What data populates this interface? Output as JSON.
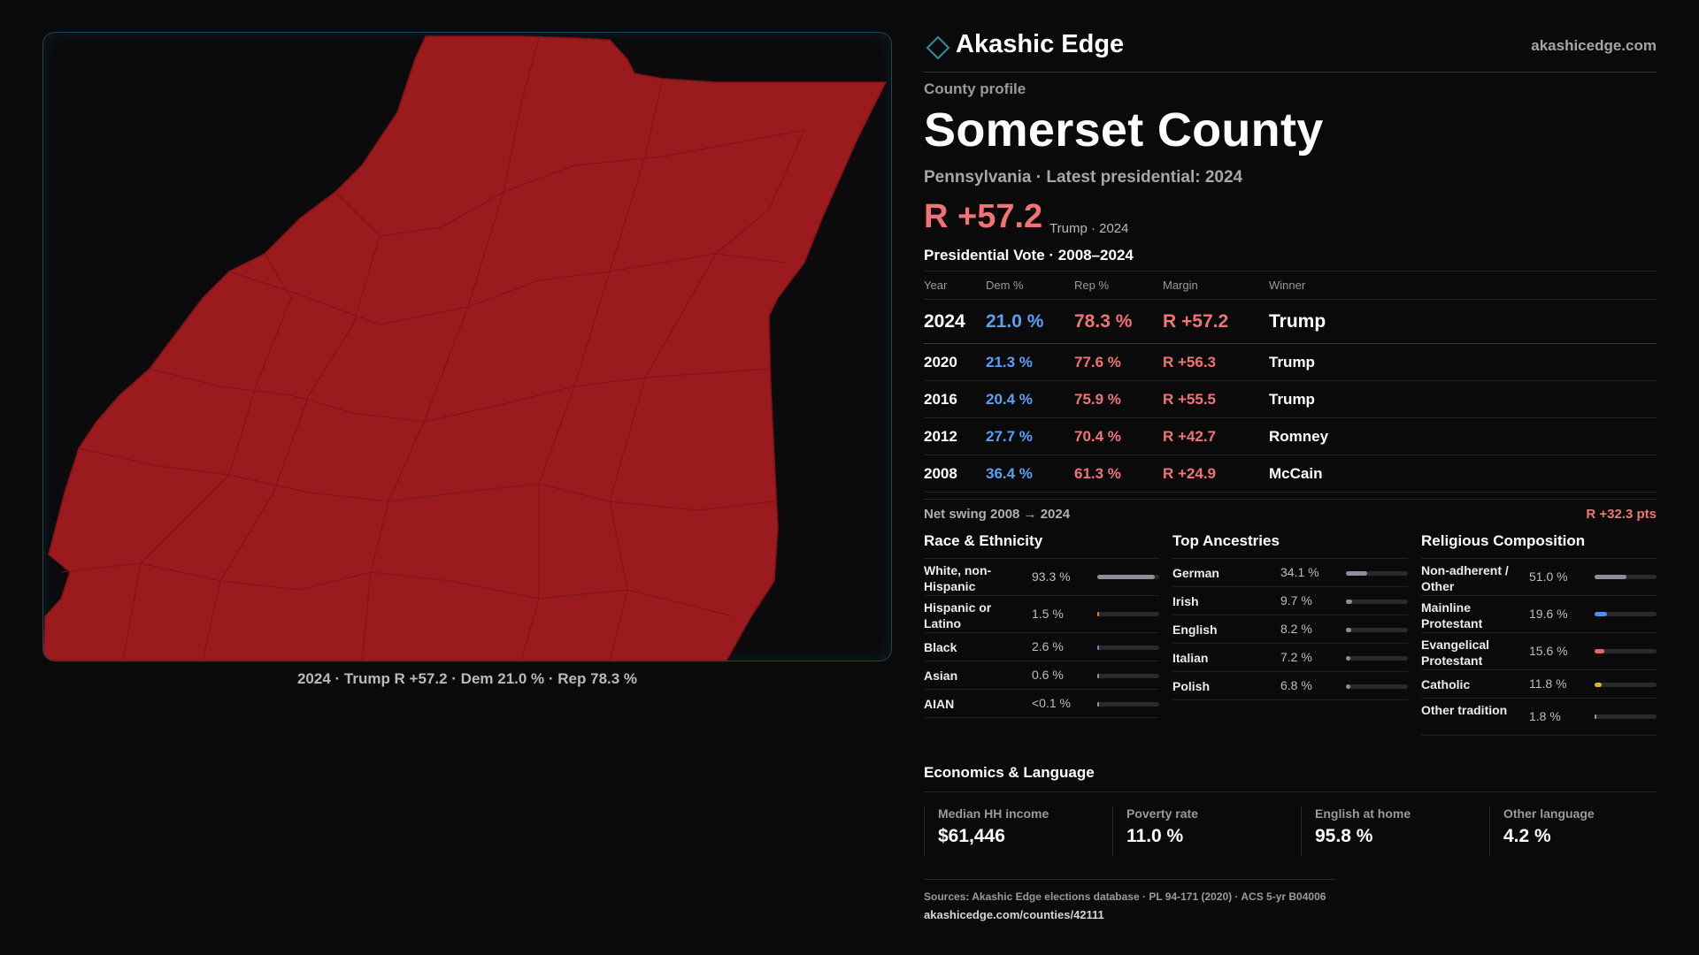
{
  "brand": {
    "name": "Akashic Edge",
    "url": "akashicedge.com"
  },
  "profile": {
    "kicker": "County profile",
    "title": "Somerset County",
    "subtitle": "Pennsylvania · Latest presidential: 2024",
    "margin": "R +57.2",
    "margin_note": "Trump · 2024"
  },
  "map": {
    "caption": "2024 · Trump R +57.2 · Dem 21.0 % · Rep 78.3 %",
    "fill_color": "#9b1a1e",
    "border_color": "#7a1316"
  },
  "votes": {
    "heading": "Presidential Vote · 2008–2024",
    "columns": [
      "Year",
      "Dem %",
      "Rep %",
      "Margin",
      "Winner"
    ],
    "rows": [
      {
        "year": "2024",
        "dem": "21.0 %",
        "rep": "78.3 %",
        "margin": "R +57.2",
        "winner": "Trump"
      },
      {
        "year": "2020",
        "dem": "21.3 %",
        "rep": "77.6 %",
        "margin": "R +56.3",
        "winner": "Trump"
      },
      {
        "year": "2016",
        "dem": "20.4 %",
        "rep": "75.9 %",
        "margin": "R +55.5",
        "winner": "Trump"
      },
      {
        "year": "2012",
        "dem": "27.7 %",
        "rep": "70.4 %",
        "margin": "R +42.7",
        "winner": "Romney"
      },
      {
        "year": "2008",
        "dem": "36.4 %",
        "rep": "61.3 %",
        "margin": "R +24.9",
        "winner": "McCain"
      }
    ],
    "swing_label": "Net swing 2008 → 2024",
    "swing_value": "R +32.3 pts"
  },
  "race": {
    "heading": "Race & Ethnicity",
    "items": [
      {
        "label": "White, non-Hispanic",
        "value": "93.3 %",
        "share": 93.3,
        "color": "#8a8f9a"
      },
      {
        "label": "Hispanic or Latino",
        "value": "1.5 %",
        "share": 1.5,
        "color": "#d9863a"
      },
      {
        "label": "Black",
        "value": "2.6 %",
        "share": 2.6,
        "color": "#7f7fd8"
      },
      {
        "label": "Asian",
        "value": "0.6 %",
        "share": 0.6,
        "color": "#9a9a9a"
      },
      {
        "label": "AIAN",
        "value": "<0.1 %",
        "share": 0.1,
        "color": "#9a9a9a"
      }
    ]
  },
  "ancestry": {
    "heading": "Top Ancestries",
    "items": [
      {
        "label": "German",
        "value": "34.1 %",
        "share": 34.1,
        "color": "#8a8f9a"
      },
      {
        "label": "Irish",
        "value": "9.7 %",
        "share": 9.7,
        "color": "#8a8f9a"
      },
      {
        "label": "English",
        "value": "8.2 %",
        "share": 8.2,
        "color": "#8a8f9a"
      },
      {
        "label": "Italian",
        "value": "7.2 %",
        "share": 7.2,
        "color": "#8a8f9a"
      },
      {
        "label": "Polish",
        "value": "6.8 %",
        "share": 6.8,
        "color": "#8a8f9a"
      }
    ]
  },
  "religion": {
    "heading": "Religious Composition",
    "items": [
      {
        "label": "Non-adherent / Other",
        "value": "51.0 %",
        "share": 51.0,
        "color": "#8a8f9a"
      },
      {
        "label": "Mainline Protestant",
        "value": "19.6 %",
        "share": 19.6,
        "color": "#4f8fe8"
      },
      {
        "label": "Evangelical Protestant",
        "value": "15.6 %",
        "share": 15.6,
        "color": "#e06a6a"
      },
      {
        "label": "Catholic",
        "value": "11.8 %",
        "share": 11.8,
        "color": "#e0b03a"
      },
      {
        "label": "Other tradition",
        "value": "1.8 %",
        "share": 1.8,
        "color": "#9a9a9a"
      }
    ]
  },
  "economics": {
    "heading": "Economics & Language",
    "cards": [
      {
        "label": "Median HH income",
        "value": "$61,446"
      },
      {
        "label": "Poverty rate",
        "value": "11.0 %"
      },
      {
        "label": "English at home",
        "value": "95.8 %"
      },
      {
        "label": "Other language",
        "value": "4.2 %"
      }
    ]
  },
  "sources": {
    "line": "Sources: Akashic Edge elections database · PL 94-171 (2020) · ACS 5-yr B04006",
    "url": "akashicedge.com/counties/42111"
  }
}
